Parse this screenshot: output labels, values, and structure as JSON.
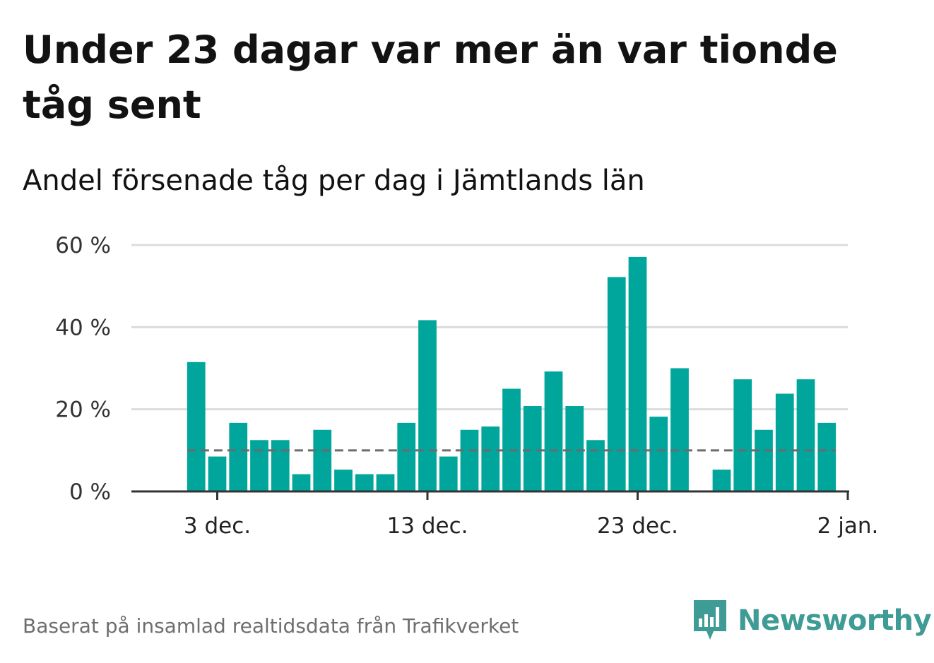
{
  "title": "Under 23 dagar var mer än var tionde tåg sent",
  "subtitle": "Andel försenade tåg per dag i Jämtlands län",
  "source": "Baserat på insamlad realtidsdata från Trafikverket",
  "brand": "Newsworthy",
  "colors": {
    "bar": "#00a69c",
    "grid": "#dcdcdc",
    "axis": "#333333",
    "reference_line": "#6b6b6b",
    "brand": "#3f9b95"
  },
  "chart_data": {
    "type": "bar",
    "title": "Under 23 dagar var mer än var tionde tåg sent",
    "subtitle": "Andel försenade tåg per dag i Jämtlands län",
    "xlabel": "",
    "ylabel": "",
    "ylim": [
      0,
      60
    ],
    "y_ticks": [
      0,
      20,
      40,
      60
    ],
    "y_tick_labels": [
      "0 %",
      "20 %",
      "40 %",
      "60 %"
    ],
    "x_ticks": [
      "2021-12-03",
      "2021-12-13",
      "2021-12-23",
      "2022-01-02"
    ],
    "x_tick_labels": [
      "3 dec.",
      "13 dec.",
      "23 dec.",
      "2 jan."
    ],
    "grid": true,
    "reference_line": 10,
    "series": [
      {
        "x": [
          "2021-12-02",
          "2021-12-03",
          "2021-12-04",
          "2021-12-05",
          "2021-12-06",
          "2021-12-07",
          "2021-12-08",
          "2021-12-09",
          "2021-12-10",
          "2021-12-11",
          "2021-12-12",
          "2021-12-13",
          "2021-12-14",
          "2021-12-15",
          "2021-12-16",
          "2021-12-17",
          "2021-12-18",
          "2021-12-19",
          "2021-12-20",
          "2021-12-21",
          "2021-12-22",
          "2021-12-23",
          "2021-12-24",
          "2021-12-25",
          "2021-12-26",
          "2021-12-27",
          "2021-12-28",
          "2021-12-29",
          "2021-12-30",
          "2021-12-31",
          "2022-01-01"
        ],
        "values": [
          31.5,
          8.5,
          16.7,
          12.5,
          12.5,
          4.2,
          15.0,
          5.3,
          4.2,
          4.2,
          16.7,
          41.7,
          8.5,
          15.0,
          15.8,
          25.0,
          20.8,
          29.2,
          20.8,
          12.5,
          52.2,
          57.1,
          18.2,
          30.0,
          0,
          5.3,
          27.3,
          15.0,
          23.8,
          27.3,
          16.7
        ]
      }
    ]
  }
}
